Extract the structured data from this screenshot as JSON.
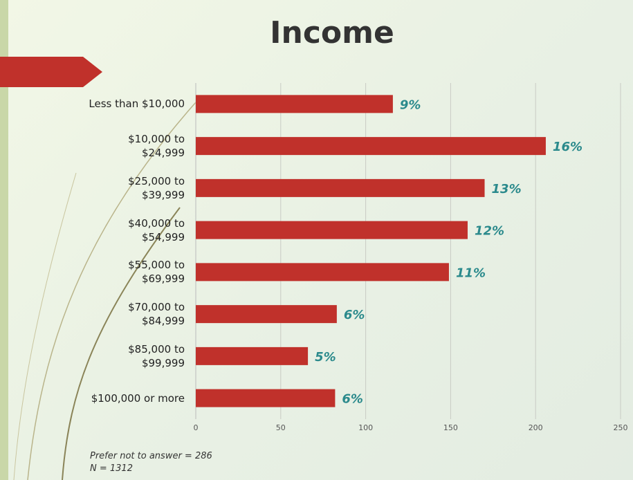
{
  "chart_data": {
    "type": "bar",
    "orientation": "horizontal",
    "title": "Income",
    "categories": [
      "Less than $10,000",
      "$10,000 to\n$24,999",
      "$25,000 to\n$39,999",
      "$40,000 to\n$54,999",
      "$55,000 to\n$69,999",
      "$70,000 to\n$84,999",
      "$85,000 to\n$99,999",
      "$100,000 or more"
    ],
    "values": [
      116,
      206,
      170,
      160,
      149,
      83,
      66,
      82
    ],
    "value_labels": [
      "9%",
      "16%",
      "13%",
      "12%",
      "11%",
      "6%",
      "5%",
      "6%"
    ],
    "color": "#c0312b",
    "label_color": "#2b8a8c",
    "xlim": [
      0,
      250
    ],
    "xticks": [
      0,
      50,
      100,
      150,
      200,
      250
    ],
    "grid": true,
    "notes": [
      "Prefer not to answer = 286",
      "N = 1312"
    ]
  }
}
